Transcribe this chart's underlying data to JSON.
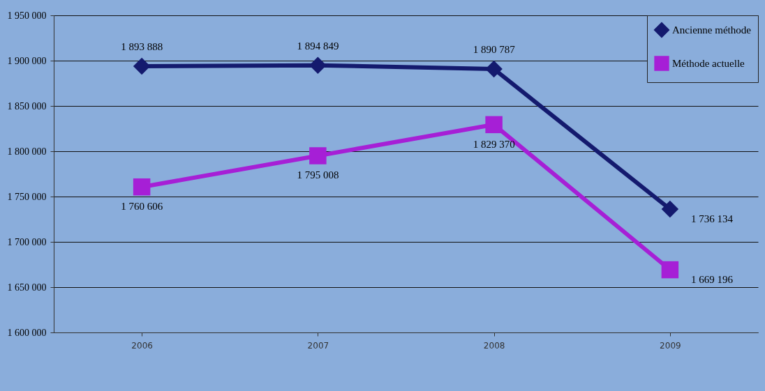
{
  "chart_data": {
    "type": "line",
    "categories": [
      "2006",
      "2007",
      "2008",
      "2009"
    ],
    "series": [
      {
        "name": "Ancienne méthode",
        "color": "#141a6e",
        "marker": "diamond",
        "values": [
          1893888,
          1894849,
          1890787,
          1736134
        ],
        "value_labels": [
          "1 893 888",
          "1 894 849",
          "1 890 787",
          "1 736 134"
        ]
      },
      {
        "name": "Méthode actuelle",
        "color": "#a61fd6",
        "marker": "square",
        "values": [
          1760606,
          1795008,
          1829370,
          1669196
        ],
        "value_labels": [
          "1 760 606",
          "1 795 008",
          "1 829 370",
          "1 669 196"
        ]
      }
    ],
    "ylim": [
      1600000,
      1950000
    ],
    "yticks": [
      {
        "value": 1600000,
        "label": "1 600 000"
      },
      {
        "value": 1650000,
        "label": "1 650 000"
      },
      {
        "value": 1700000,
        "label": "1 700 000"
      },
      {
        "value": 1750000,
        "label": "1 750 000"
      },
      {
        "value": 1800000,
        "label": "1 800 000"
      },
      {
        "value": 1850000,
        "label": "1 850 000"
      },
      {
        "value": 1900000,
        "label": "1 900 000"
      },
      {
        "value": 1950000,
        "label": "1 950 000"
      }
    ],
    "grid": "y",
    "legend": "top right",
    "line_style": "solid"
  }
}
